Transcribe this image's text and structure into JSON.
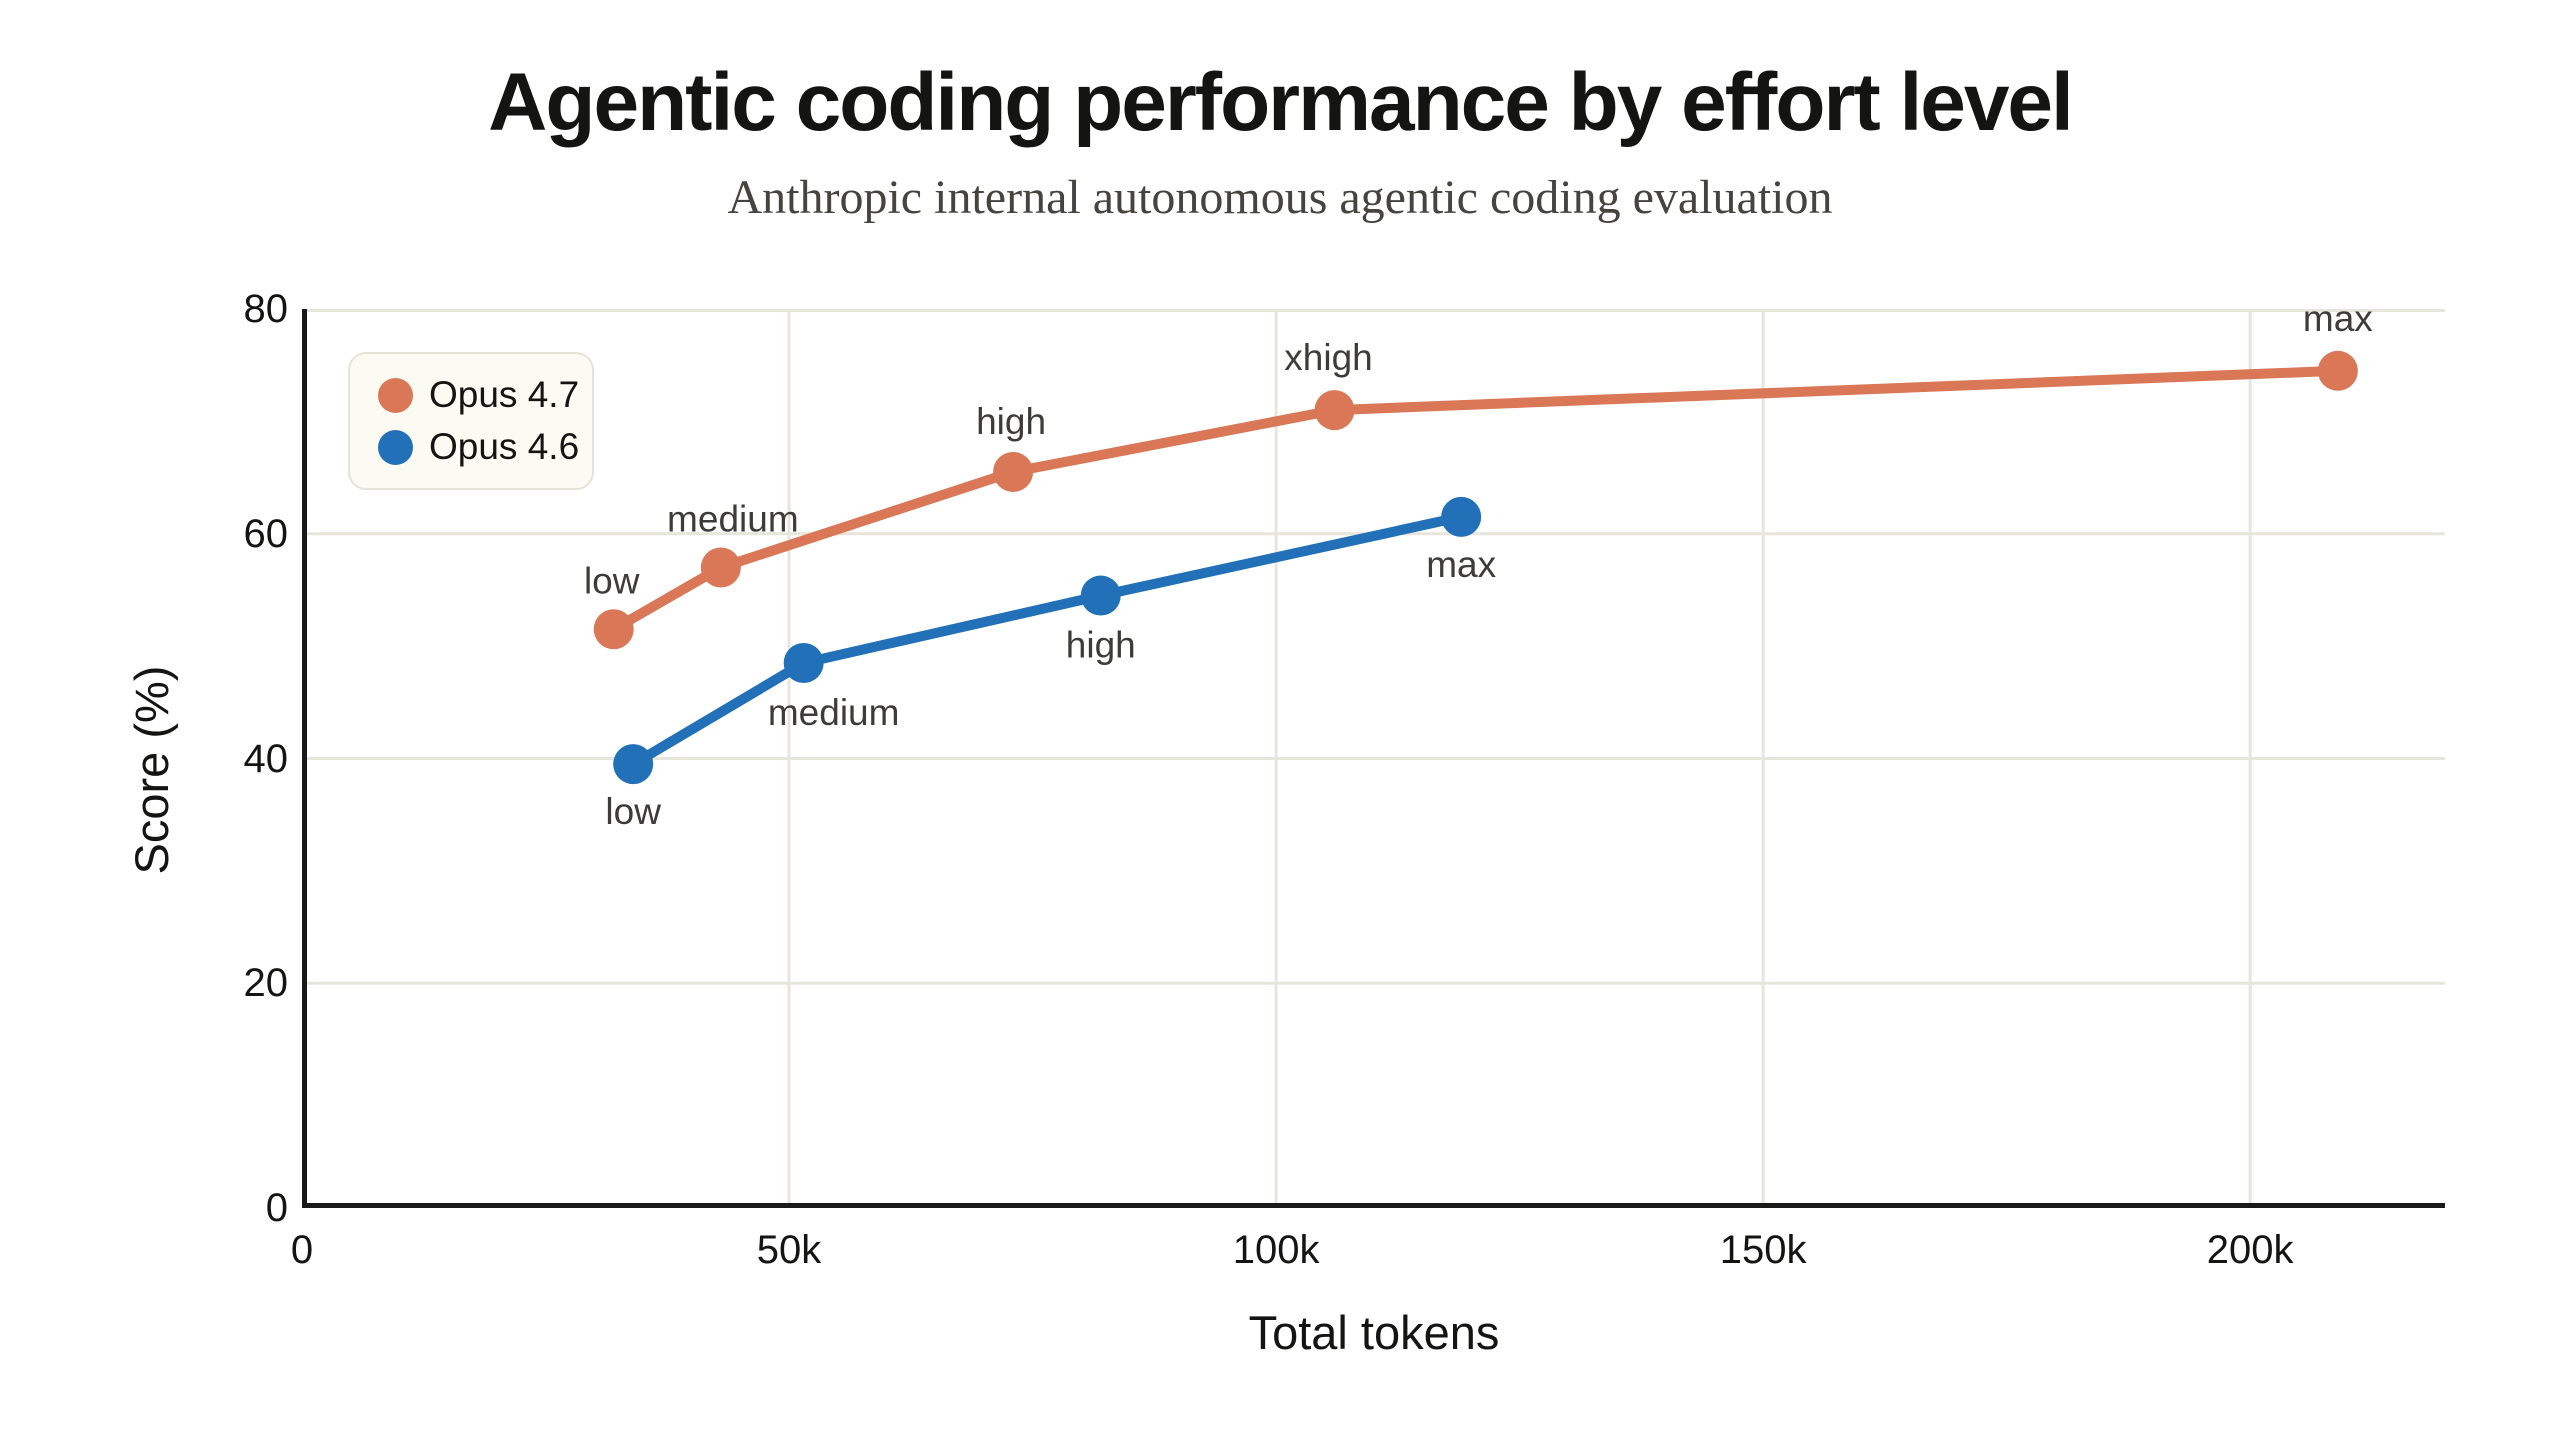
{
  "page": {
    "title": "Agentic coding performance by effort level",
    "subtitle": "Anthropic internal autonomous agentic coding evaluation"
  },
  "colors": {
    "background": "#ffffff",
    "axis": "#191919",
    "grid": "#e7e5dc",
    "tick_text": "#141413",
    "point_label_text": "#3d3c38",
    "legend_bg": "#fbfaf3",
    "legend_border": "#e5e3d8",
    "opus_4_7": "#d97757",
    "opus_4_6": "#2170b8"
  },
  "chart_data": {
    "type": "line",
    "title": "Agentic coding performance by effort level",
    "subtitle": "Anthropic internal autonomous agentic coding evaluation",
    "xlabel": "Total tokens",
    "ylabel": "Score (%)",
    "xlim": [
      0,
      220000
    ],
    "ylim": [
      0,
      80
    ],
    "grid": true,
    "legend_position": "top-left",
    "x_ticks": [
      {
        "value": 0,
        "label": "0"
      },
      {
        "value": 50000,
        "label": "50k"
      },
      {
        "value": 100000,
        "label": "100k"
      },
      {
        "value": 150000,
        "label": "150k"
      },
      {
        "value": 200000,
        "label": "200k"
      }
    ],
    "y_ticks": [
      {
        "value": 0,
        "label": "0"
      },
      {
        "value": 20,
        "label": "20"
      },
      {
        "value": 40,
        "label": "40"
      },
      {
        "value": 60,
        "label": "60"
      },
      {
        "value": 80,
        "label": "80"
      }
    ],
    "series": [
      {
        "name": "Opus 4.7",
        "color": "#d97757",
        "points": [
          {
            "x": 32000,
            "y": 51.5,
            "label": "low",
            "label_dx": -2,
            "label_dy": -36
          },
          {
            "x": 43000,
            "y": 57.0,
            "label": "medium",
            "label_dx": 12,
            "label_dy": -36
          },
          {
            "x": 73000,
            "y": 65.5,
            "label": "high",
            "label_dx": -2,
            "label_dy": -38
          },
          {
            "x": 106000,
            "y": 71.0,
            "label": "xhigh",
            "label_dx": -6,
            "label_dy": -40
          },
          {
            "x": 209000,
            "y": 74.5,
            "label": "max",
            "label_dx": 0,
            "label_dy": -40
          }
        ]
      },
      {
        "name": "Opus 4.6",
        "color": "#2170b8",
        "points": [
          {
            "x": 34000,
            "y": 39.5,
            "label": "low",
            "label_dx": 0,
            "label_dy": 60
          },
          {
            "x": 51500,
            "y": 48.5,
            "label": "medium",
            "label_dx": 30,
            "label_dy": 62
          },
          {
            "x": 82000,
            "y": 54.5,
            "label": "high",
            "label_dx": 0,
            "label_dy": 62
          },
          {
            "x": 119000,
            "y": 61.5,
            "label": "max",
            "label_dx": 0,
            "label_dy": 60
          }
        ]
      }
    ]
  }
}
